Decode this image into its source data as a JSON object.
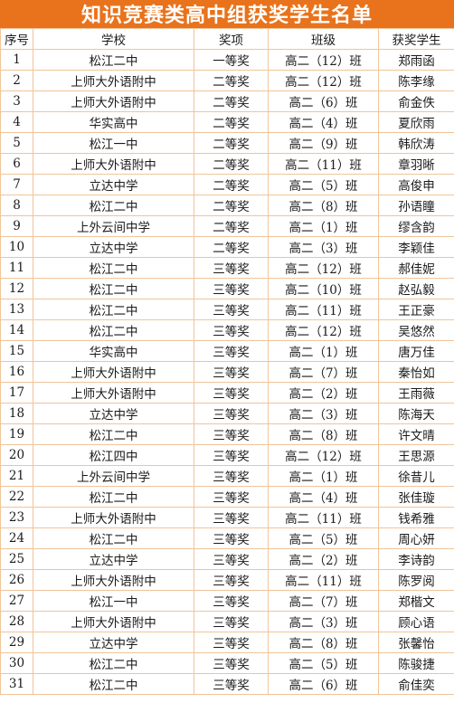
{
  "title": "知识竞赛类高中组获奖学生名单",
  "colors": {
    "banner_bg": "#e8731c",
    "banner_text": "#ffffff",
    "grid_line": "#f0c49a"
  },
  "headers": [
    "序号",
    "学校",
    "奖项",
    "班级",
    "获奖学生"
  ],
  "rows": [
    [
      "1",
      "松江二中",
      "一等奖",
      "高二（12）班",
      "郑雨函"
    ],
    [
      "2",
      "上师大外语附中",
      "二等奖",
      "高二（12）班",
      "陈李缘"
    ],
    [
      "3",
      "上师大外语附中",
      "二等奖",
      "高二（6）班",
      "俞金佚"
    ],
    [
      "4",
      "华实高中",
      "二等奖",
      "高二（4）班",
      "夏欣雨"
    ],
    [
      "5",
      "松江一中",
      "二等奖",
      "高二（9）班",
      "韩欣涛"
    ],
    [
      "6",
      "上师大外语附中",
      "二等奖",
      "高二（11）班",
      "章羽晰"
    ],
    [
      "7",
      "立达中学",
      "二等奖",
      "高二（5）班",
      "高俊申"
    ],
    [
      "8",
      "松江二中",
      "二等奖",
      "高二（8）班",
      "孙语瞳"
    ],
    [
      "9",
      "上外云间中学",
      "二等奖",
      "高二（1）班",
      "缪含韵"
    ],
    [
      "10",
      "立达中学",
      "二等奖",
      "高二（3）班",
      "李颖佳"
    ],
    [
      "11",
      "松江二中",
      "三等奖",
      "高二（12）班",
      "郝佳妮"
    ],
    [
      "12",
      "松江二中",
      "三等奖",
      "高二（10）班",
      "赵弘毅"
    ],
    [
      "13",
      "松江二中",
      "三等奖",
      "高二（11）班",
      "王正豪"
    ],
    [
      "14",
      "松江二中",
      "三等奖",
      "高二（12）班",
      "吴悠然"
    ],
    [
      "15",
      "华实高中",
      "三等奖",
      "高二（1）班",
      "唐万佳"
    ],
    [
      "16",
      "上师大外语附中",
      "三等奖",
      "高二（7）班",
      "秦怡如"
    ],
    [
      "17",
      "上师大外语附中",
      "三等奖",
      "高二（2）班",
      "王雨薇"
    ],
    [
      "18",
      "立达中学",
      "三等奖",
      "高二（3）班",
      "陈海天"
    ],
    [
      "19",
      "松江二中",
      "三等奖",
      "高二（8）班",
      "许文晴"
    ],
    [
      "20",
      "松江四中",
      "三等奖",
      "高二（12）班",
      "王思源"
    ],
    [
      "21",
      "上外云间中学",
      "三等奖",
      "高二（1）班",
      "徐昔儿"
    ],
    [
      "22",
      "松江二中",
      "三等奖",
      "高二（4）班",
      "张佳璇"
    ],
    [
      "23",
      "上师大外语附中",
      "三等奖",
      "高二（11）班",
      "钱希雅"
    ],
    [
      "24",
      "松江二中",
      "三等奖",
      "高二（5）班",
      "周心妍"
    ],
    [
      "25",
      "立达中学",
      "三等奖",
      "高二（2）班",
      "李诗韵"
    ],
    [
      "26",
      "上师大外语附中",
      "三等奖",
      "高二（11）班",
      "陈罗阅"
    ],
    [
      "27",
      "松江一中",
      "三等奖",
      "高二（7）班",
      "郑楷文"
    ],
    [
      "28",
      "上师大外语附中",
      "三等奖",
      "高二（3）班",
      "顾心语"
    ],
    [
      "29",
      "立达中学",
      "三等奖",
      "高二（8）班",
      "张馨怡"
    ],
    [
      "30",
      "松江二中",
      "三等奖",
      "高二（5）班",
      "陈骏捷"
    ],
    [
      "31",
      "松江二中",
      "三等奖",
      "高二（6）班",
      "俞佳奕"
    ]
  ]
}
